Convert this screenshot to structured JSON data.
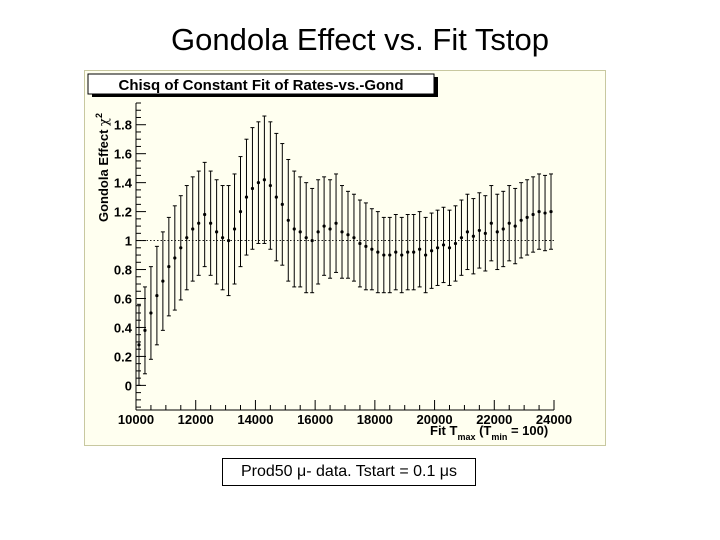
{
  "page": {
    "title": "Gondola Effect vs. Fit Tstop",
    "caption": "Prod50 μ- data.   Tstart = 0.1 μs"
  },
  "colors": {
    "background": "#fffff0",
    "frame": "#c8c8a0",
    "ink": "#000000"
  },
  "chart_data": {
    "type": "scatter",
    "title": "Chisq of Constant Fit of Rates-vs.-Gond",
    "ylabel": "Gondola Effect χ²",
    "ylabel_main": "Gondola Effect ",
    "ylabel_symbol": "χ",
    "ylabel_exp": "2",
    "xlabel": "Fit Tmax (Tmin = 100)",
    "xlabel_parts": {
      "a": "Fit T",
      "sub1": "max",
      "b": " (T",
      "sub2": "min",
      "c": " = 100)"
    },
    "xlim": [
      10000,
      24000
    ],
    "ylim": [
      -0.17,
      1.95
    ],
    "x_ticks": [
      10000,
      12000,
      14000,
      16000,
      18000,
      20000,
      22000,
      24000
    ],
    "x_tick_labels": [
      "10000",
      "12000",
      "14000",
      "16000",
      "18000",
      "20000",
      "22000",
      "24000"
    ],
    "y_ticks": [
      0,
      0.2,
      0.4,
      0.6,
      0.8,
      1,
      1.2,
      1.4,
      1.6,
      1.8
    ],
    "y_tick_labels": [
      "0",
      "0.2",
      "0.4",
      "0.6",
      "0.8",
      "1",
      "1.2",
      "1.4",
      "1.6",
      "1.8"
    ],
    "reference_line": 1,
    "x": [
      10100,
      10300,
      10500,
      10700,
      10900,
      11100,
      11300,
      11500,
      11700,
      11900,
      12100,
      12300,
      12500,
      12700,
      12900,
      13100,
      13300,
      13500,
      13700,
      13900,
      14100,
      14300,
      14500,
      14700,
      14900,
      15100,
      15300,
      15500,
      15700,
      15900,
      16100,
      16300,
      16500,
      16700,
      16900,
      17100,
      17300,
      17500,
      17700,
      17900,
      18100,
      18300,
      18500,
      18700,
      18900,
      19100,
      19300,
      19500,
      19700,
      19900,
      20100,
      20300,
      20500,
      20700,
      20900,
      21100,
      21300,
      21500,
      21700,
      21900,
      22100,
      22300,
      22500,
      22700,
      22900,
      23100,
      23300,
      23500,
      23700,
      23900
    ],
    "y": [
      0.28,
      0.38,
      0.5,
      0.62,
      0.72,
      0.82,
      0.88,
      0.95,
      1.02,
      1.08,
      1.12,
      1.18,
      1.12,
      1.06,
      1.02,
      1.0,
      1.08,
      1.2,
      1.3,
      1.36,
      1.4,
      1.42,
      1.38,
      1.3,
      1.25,
      1.14,
      1.08,
      1.06,
      1.02,
      1.0,
      1.06,
      1.1,
      1.08,
      1.12,
      1.06,
      1.04,
      1.02,
      0.98,
      0.96,
      0.94,
      0.92,
      0.9,
      0.9,
      0.92,
      0.9,
      0.92,
      0.92,
      0.94,
      0.9,
      0.93,
      0.95,
      0.97,
      0.95,
      0.98,
      1.02,
      1.06,
      1.03,
      1.07,
      1.05,
      1.12,
      1.06,
      1.08,
      1.12,
      1.1,
      1.14,
      1.16,
      1.18,
      1.2,
      1.19,
      1.2
    ],
    "yerr": [
      0.28,
      0.3,
      0.32,
      0.34,
      0.34,
      0.34,
      0.36,
      0.36,
      0.36,
      0.36,
      0.36,
      0.36,
      0.36,
      0.36,
      0.36,
      0.38,
      0.38,
      0.38,
      0.4,
      0.42,
      0.42,
      0.44,
      0.44,
      0.44,
      0.42,
      0.42,
      0.4,
      0.38,
      0.38,
      0.36,
      0.36,
      0.34,
      0.34,
      0.34,
      0.32,
      0.3,
      0.3,
      0.3,
      0.3,
      0.28,
      0.28,
      0.26,
      0.26,
      0.26,
      0.26,
      0.26,
      0.26,
      0.26,
      0.26,
      0.26,
      0.26,
      0.26,
      0.26,
      0.26,
      0.26,
      0.26,
      0.26,
      0.26,
      0.26,
      0.26,
      0.26,
      0.26,
      0.26,
      0.26,
      0.26,
      0.26,
      0.26,
      0.26,
      0.26,
      0.26
    ]
  }
}
